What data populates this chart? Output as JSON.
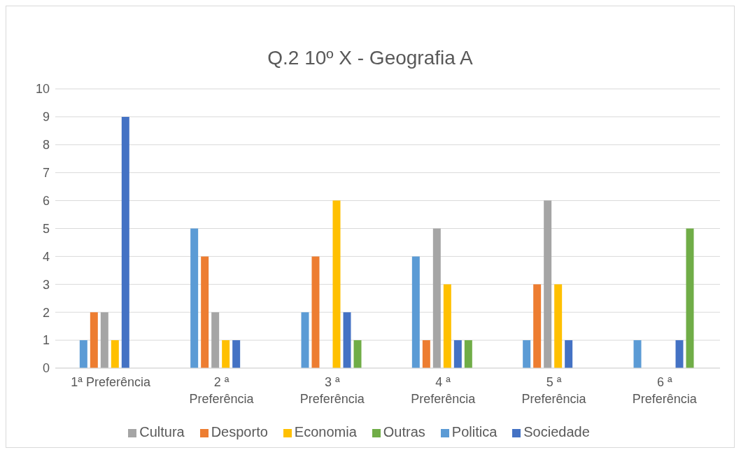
{
  "chart_data": {
    "type": "bar",
    "title": "Q.2 10º X - Geografia A",
    "categories": [
      "1ª Preferência",
      "2 ª Preferência",
      "3 ª Preferência",
      "4 ª Preferência",
      "5 ª Preferência",
      "6 ª Preferência"
    ],
    "series": [
      {
        "name": "Politica",
        "color": "#5b9bd5",
        "values": [
          1,
          5,
          2,
          4,
          1,
          1
        ]
      },
      {
        "name": "Desporto",
        "color": "#ed7d31",
        "values": [
          2,
          4,
          4,
          1,
          3,
          0
        ]
      },
      {
        "name": "Cultura",
        "color": "#a5a5a5",
        "values": [
          2,
          2,
          0,
          5,
          6,
          0
        ]
      },
      {
        "name": "Economia",
        "color": "#ffc000",
        "values": [
          1,
          1,
          6,
          3,
          3,
          0
        ]
      },
      {
        "name": "Sociedade",
        "color": "#4472c4",
        "values": [
          9,
          1,
          2,
          1,
          1,
          1
        ]
      },
      {
        "name": "Outras",
        "color": "#70ad47",
        "values": [
          0,
          0,
          1,
          1,
          0,
          5
        ]
      }
    ],
    "ylim": [
      0,
      10
    ],
    "yticks": [
      0,
      1,
      2,
      3,
      4,
      5,
      6,
      7,
      8,
      9,
      10
    ],
    "grid": "y",
    "legend": "bottom"
  }
}
